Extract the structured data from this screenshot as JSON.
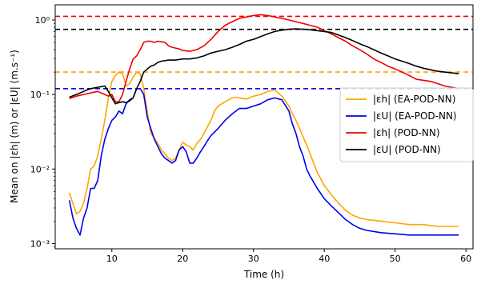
{
  "chart_data": {
    "type": "line",
    "x_scale": "linear",
    "y_scale": "log",
    "xlim": [
      2,
      61
    ],
    "ylim": [
      0.00085,
      1.6
    ],
    "xlabel": "Time (h)",
    "ylabel": "Mean on |εh| (m) or |εU| (m.s⁻¹)",
    "x_ticks": [
      10,
      20,
      30,
      40,
      50,
      60
    ],
    "x_tick_labels": [
      "10",
      "20",
      "30",
      "40",
      "50",
      "60"
    ],
    "y_ticks": [
      0.001,
      0.01,
      0.1,
      1
    ],
    "y_tick_labels": [
      "10⁻³",
      "10⁻²",
      "10⁻¹",
      "10⁰"
    ],
    "grid": false,
    "legend_position": "center-right",
    "series": [
      {
        "name": "|εh| (EA-POD-NN)",
        "color": "#FFA500",
        "x": [
          4,
          5,
          5.5,
          6,
          6.5,
          7,
          7.5,
          8,
          8.5,
          9,
          9.5,
          10,
          10.5,
          11,
          11.5,
          12,
          12.5,
          13,
          13.5,
          14,
          14.5,
          15,
          15.5,
          16,
          16.5,
          17,
          17.5,
          18,
          18.5,
          19,
          19.5,
          20,
          20.5,
          21,
          21.5,
          22,
          22.5,
          23,
          23.5,
          24,
          24.5,
          25,
          25.5,
          26,
          26.5,
          27,
          27.5,
          28,
          29,
          30,
          31,
          32,
          33,
          34,
          35,
          35.5,
          36,
          36.5,
          37,
          37.5,
          38,
          38.5,
          39,
          40,
          41,
          42,
          43,
          44,
          45,
          46,
          48,
          50,
          52,
          54,
          56,
          58,
          59
        ],
        "y": [
          0.0048,
          0.0025,
          0.0027,
          0.0035,
          0.0055,
          0.01,
          0.011,
          0.015,
          0.025,
          0.045,
          0.09,
          0.15,
          0.18,
          0.2,
          0.19,
          0.13,
          0.14,
          0.17,
          0.2,
          0.19,
          0.12,
          0.06,
          0.03,
          0.026,
          0.022,
          0.018,
          0.016,
          0.014,
          0.013,
          0.014,
          0.018,
          0.023,
          0.021,
          0.02,
          0.018,
          0.022,
          0.025,
          0.03,
          0.037,
          0.045,
          0.06,
          0.07,
          0.075,
          0.08,
          0.085,
          0.09,
          0.092,
          0.09,
          0.087,
          0.095,
          0.1,
          0.11,
          0.115,
          0.095,
          0.07,
          0.055,
          0.045,
          0.035,
          0.027,
          0.021,
          0.016,
          0.012,
          0.009,
          0.006,
          0.0045,
          0.0035,
          0.0028,
          0.0024,
          0.0022,
          0.0021,
          0.002,
          0.0019,
          0.0018,
          0.0018,
          0.0017,
          0.0017,
          0.0017
        ]
      },
      {
        "name": "|εU| (EA-POD-NN)",
        "color": "#0000EE",
        "x": [
          4,
          4.5,
          5,
          5.5,
          6,
          6.5,
          7,
          7.5,
          8,
          8.5,
          9,
          9.5,
          10,
          10.5,
          11,
          11.5,
          12,
          12.5,
          13,
          13.5,
          14,
          14.5,
          15,
          15.5,
          16,
          16.5,
          17,
          17.5,
          18,
          18.5,
          19,
          19.5,
          20,
          20.5,
          21,
          21.5,
          22,
          22.5,
          23,
          23.5,
          24,
          25,
          26,
          27,
          28,
          29,
          30,
          31,
          32,
          33,
          34,
          35,
          35.5,
          36,
          36.5,
          37,
          37.5,
          38,
          39,
          40,
          41,
          42,
          43,
          44,
          45,
          46,
          48,
          50,
          52,
          54,
          56,
          58,
          59
        ],
        "y": [
          0.0038,
          0.0022,
          0.0016,
          0.0013,
          0.0022,
          0.003,
          0.0055,
          0.0055,
          0.007,
          0.015,
          0.025,
          0.035,
          0.045,
          0.05,
          0.06,
          0.055,
          0.075,
          0.085,
          0.09,
          0.12,
          0.12,
          0.1,
          0.05,
          0.035,
          0.025,
          0.02,
          0.016,
          0.014,
          0.013,
          0.012,
          0.013,
          0.018,
          0.02,
          0.017,
          0.012,
          0.012,
          0.014,
          0.017,
          0.02,
          0.024,
          0.028,
          0.035,
          0.045,
          0.055,
          0.065,
          0.065,
          0.07,
          0.075,
          0.085,
          0.09,
          0.085,
          0.06,
          0.04,
          0.03,
          0.02,
          0.015,
          0.01,
          0.008,
          0.0055,
          0.004,
          0.0032,
          0.0026,
          0.0021,
          0.0018,
          0.0016,
          0.0015,
          0.0014,
          0.00135,
          0.0013,
          0.0013,
          0.0013,
          0.0013,
          0.0013
        ]
      },
      {
        "name": "|εh| (POD-NN)",
        "color": "#EE0000",
        "x": [
          4,
          5,
          6,
          7,
          8,
          9,
          9.5,
          10,
          10.5,
          11,
          11.5,
          12,
          12.5,
          13,
          13.5,
          14,
          14.5,
          15,
          15.5,
          16,
          16.5,
          17,
          17.5,
          18,
          18.5,
          19,
          19.5,
          20,
          21,
          22,
          23,
          24,
          25,
          26,
          27,
          28,
          29,
          30,
          31,
          32,
          33,
          34,
          35,
          36,
          37,
          38,
          39,
          40,
          41,
          42,
          43,
          44,
          45,
          46,
          47,
          48,
          49,
          50,
          51,
          52,
          53,
          54,
          55,
          56,
          57,
          58,
          59
        ],
        "y": [
          0.088,
          0.095,
          0.1,
          0.105,
          0.11,
          0.1,
          0.095,
          0.1,
          0.08,
          0.08,
          0.1,
          0.15,
          0.22,
          0.3,
          0.33,
          0.4,
          0.5,
          0.52,
          0.52,
          0.5,
          0.52,
          0.51,
          0.5,
          0.45,
          0.43,
          0.42,
          0.41,
          0.39,
          0.38,
          0.4,
          0.45,
          0.55,
          0.7,
          0.85,
          0.95,
          1.05,
          1.1,
          1.15,
          1.18,
          1.15,
          1.1,
          1.05,
          1.0,
          0.95,
          0.9,
          0.85,
          0.8,
          0.72,
          0.65,
          0.58,
          0.52,
          0.45,
          0.4,
          0.35,
          0.3,
          0.27,
          0.24,
          0.22,
          0.2,
          0.18,
          0.16,
          0.155,
          0.15,
          0.14,
          0.13,
          0.125,
          0.12
        ]
      },
      {
        "name": "|εU| (POD-NN)",
        "color": "#000000",
        "x": [
          4,
          5,
          6,
          7,
          8,
          9,
          9.5,
          10,
          10.5,
          11,
          11.5,
          12,
          12.5,
          13,
          13.5,
          14,
          14.5,
          15,
          15.5,
          16,
          16.5,
          17,
          18,
          19,
          20,
          21,
          22,
          23,
          24,
          25,
          26,
          27,
          28,
          29,
          30,
          31,
          32,
          33,
          34,
          35,
          36,
          37,
          38,
          39,
          40,
          41,
          42,
          43,
          44,
          45,
          46,
          47,
          48,
          49,
          50,
          51,
          52,
          53,
          54,
          55,
          56,
          57,
          58,
          59
        ],
        "y": [
          0.092,
          0.1,
          0.11,
          0.12,
          0.125,
          0.13,
          0.11,
          0.09,
          0.075,
          0.078,
          0.08,
          0.078,
          0.082,
          0.09,
          0.12,
          0.15,
          0.2,
          0.22,
          0.24,
          0.25,
          0.27,
          0.28,
          0.29,
          0.29,
          0.3,
          0.3,
          0.31,
          0.33,
          0.36,
          0.38,
          0.4,
          0.43,
          0.47,
          0.52,
          0.55,
          0.6,
          0.65,
          0.7,
          0.73,
          0.75,
          0.76,
          0.75,
          0.74,
          0.72,
          0.7,
          0.68,
          0.63,
          0.58,
          0.53,
          0.48,
          0.44,
          0.4,
          0.36,
          0.33,
          0.3,
          0.28,
          0.26,
          0.24,
          0.225,
          0.215,
          0.205,
          0.2,
          0.195,
          0.19
        ]
      }
    ],
    "reference_lines": [
      {
        "series": "|εh| (POD-NN) max",
        "value": 1.12,
        "color": "#EE0000"
      },
      {
        "series": "|εU| (POD-NN) max",
        "value": 0.75,
        "color": "#000000"
      },
      {
        "series": "|εh| (EA-POD-NN) max",
        "value": 0.2,
        "color": "#FFA500"
      },
      {
        "series": "|εU| (EA-POD-NN) max",
        "value": 0.12,
        "color": "#0000EE"
      }
    ]
  }
}
